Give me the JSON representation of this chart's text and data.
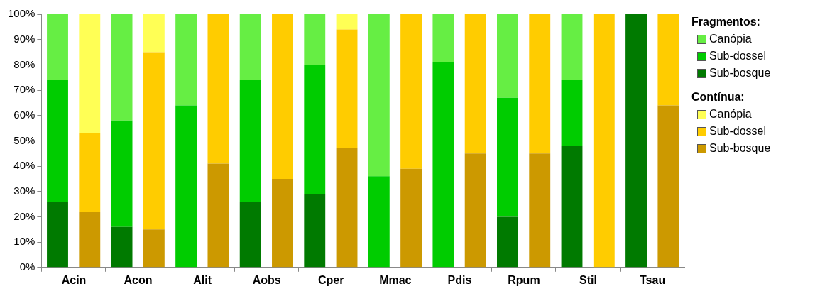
{
  "chart_data": {
    "type": "bar",
    "stacked": true,
    "legend": "right",
    "grid": false,
    "legend_title": [
      "Fragmentos:",
      "Contínua:"
    ],
    "categories": [
      "Acin",
      null,
      "Acon",
      null,
      "Alit",
      null,
      "Aobs",
      null,
      "Cper",
      null,
      "Mmac",
      null,
      "Pdis",
      null,
      "Rpum",
      null,
      "Stil",
      null,
      "Tsau",
      null
    ],
    "ylim": [
      0,
      100
    ],
    "yticks": [
      {
        "value": 0,
        "label": "0%"
      },
      {
        "value": 10,
        "label": "10%"
      },
      {
        "value": 20,
        "label": "20%"
      },
      {
        "value": 30,
        "label": "30%"
      },
      {
        "value": 40,
        "label": "40%"
      },
      {
        "value": 50,
        "label": "50%"
      },
      {
        "value": 60,
        "label": "60%"
      },
      {
        "value": 70,
        "label": "70%"
      },
      {
        "value": 80,
        "label": "80%"
      },
      {
        "value": 90,
        "label": "90%"
      },
      {
        "value": 100,
        "label": "100%"
      }
    ],
    "series": [
      {
        "name": "Sub-bosque",
        "color": "#007a00",
        "values": [
          26,
          null,
          16,
          null,
          0,
          null,
          26,
          null,
          29,
          null,
          0,
          null,
          0,
          null,
          20,
          null,
          48,
          null,
          100,
          null
        ]
      },
      {
        "name": "Sub-dossel",
        "color": "#00cc00",
        "values": [
          48,
          null,
          42,
          null,
          64,
          null,
          48,
          null,
          51,
          null,
          36,
          null,
          81,
          null,
          47,
          null,
          26,
          null,
          0,
          null
        ]
      },
      {
        "name": "Canópia",
        "color": "#66ee44",
        "values": [
          26,
          null,
          42,
          null,
          36,
          null,
          26,
          null,
          20,
          null,
          64,
          null,
          19,
          null,
          33,
          null,
          26,
          null,
          0,
          null
        ]
      },
      {
        "name": "Sub-bosque",
        "color": "#cc9900",
        "values": [
          null,
          22,
          null,
          15,
          null,
          41,
          null,
          35,
          null,
          47,
          null,
          39,
          null,
          45,
          null,
          45,
          null,
          0,
          null,
          64
        ]
      },
      {
        "name": "Sub-dossel",
        "color": "#ffcc00",
        "values": [
          null,
          31,
          null,
          70,
          null,
          59,
          null,
          65,
          null,
          47,
          null,
          61,
          null,
          55,
          null,
          55,
          null,
          100,
          null,
          36
        ]
      },
      {
        "name": "Canópia",
        "color": "#ffff55",
        "values": [
          null,
          47,
          null,
          15,
          null,
          0,
          null,
          0,
          null,
          6,
          null,
          0,
          null,
          0,
          null,
          0,
          null,
          0,
          null,
          0
        ]
      }
    ]
  }
}
